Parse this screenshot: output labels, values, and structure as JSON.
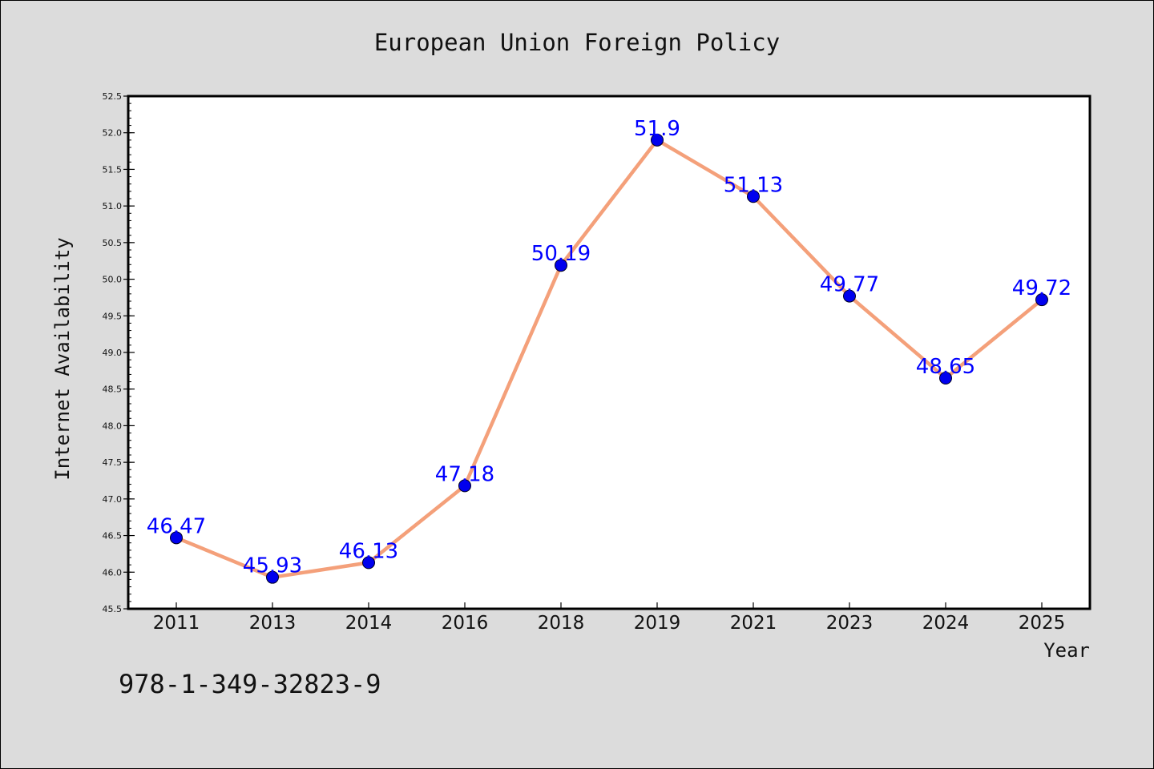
{
  "chart_data": {
    "type": "line",
    "title": "European Union Foreign Policy",
    "xlabel": "Year",
    "ylabel": "Internet Availability",
    "categories": [
      "2011",
      "2013",
      "2014",
      "2016",
      "2018",
      "2019",
      "2021",
      "2023",
      "2024",
      "2025"
    ],
    "series": [
      {
        "values": [
          46.47,
          45.93,
          46.13,
          47.18,
          50.19,
          51.9,
          51.13,
          49.77,
          48.65,
          49.72
        ]
      }
    ],
    "data_labels": [
      "46.47",
      "45.93",
      "46.13",
      "47.18",
      "50.19",
      "51.9",
      "51.13",
      "49.77",
      "48.65",
      "49.72"
    ],
    "ylim": [
      45.5,
      52.5
    ],
    "yticks": [
      "45.5",
      "46.0",
      "46.5",
      "47.0",
      "47.5",
      "48.0",
      "48.5",
      "49.0",
      "49.5",
      "50.0",
      "50.5",
      "51.0",
      "51.5",
      "52.0",
      "52.5"
    ],
    "grid": false,
    "legend": "none",
    "colors": {
      "line": "#f4a07a",
      "marker": "#0000ee",
      "label": "#0000ff",
      "background": "#dcdcdc",
      "plot_background": "#ffffff"
    }
  },
  "footer": {
    "isbn": "978-1-349-32823-9"
  }
}
